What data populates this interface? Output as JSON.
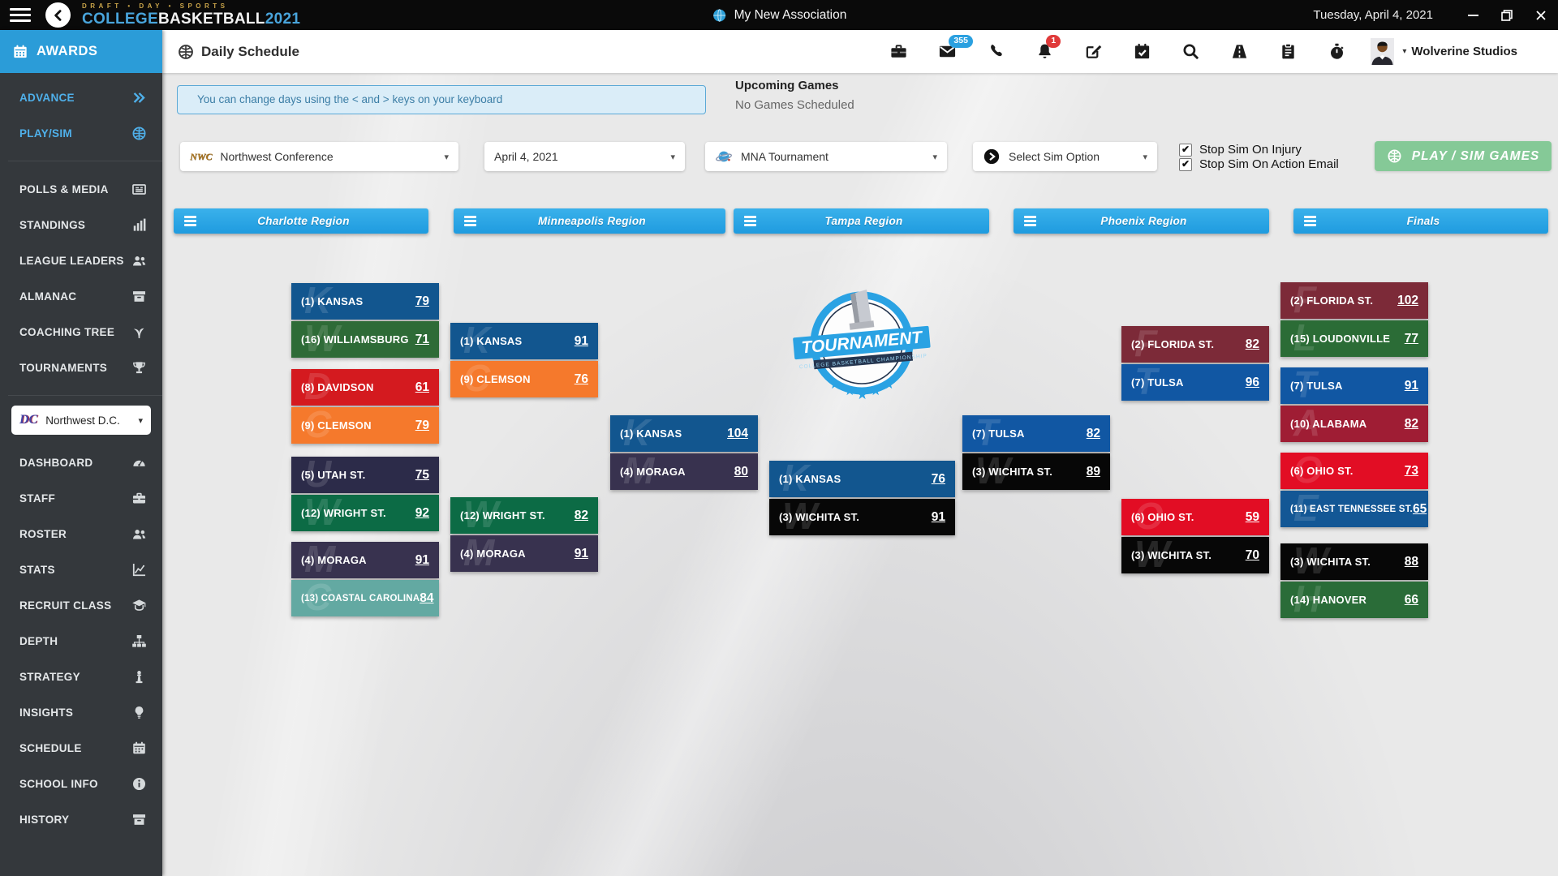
{
  "titlebar": {
    "brand_top": "DRAFT • DAY • SPORTS",
    "brand": {
      "college": "COLLEGE",
      "basketball": "BASKETBALL",
      "year": "2021"
    },
    "app_title": "My New Association",
    "date": "Tuesday, April 4, 2021"
  },
  "header": {
    "page_title": "Daily Schedule",
    "badges": {
      "mail": "355",
      "notifications": "1"
    },
    "user": "Wolverine Studios"
  },
  "sidebar": {
    "header": "AWARDS",
    "primary": [
      {
        "id": "advance",
        "label": "ADVANCE",
        "icon": "double-chevron-right",
        "accent": true
      },
      {
        "id": "play-sim",
        "label": "PLAY/SIM",
        "icon": "basketball",
        "accent": true
      }
    ],
    "league": [
      {
        "id": "polls-media",
        "label": "POLLS & MEDIA",
        "icon": "newspaper"
      },
      {
        "id": "standings",
        "label": "STANDINGS",
        "icon": "bar-chart"
      },
      {
        "id": "league-leaders",
        "label": "LEAGUE LEADERS",
        "icon": "users"
      },
      {
        "id": "almanac",
        "label": "ALMANAC",
        "icon": "archive"
      },
      {
        "id": "coaching-tree",
        "label": "COACHING TREE",
        "icon": "tree"
      },
      {
        "id": "tournaments",
        "label": "TOURNAMENTS",
        "icon": "trophy"
      }
    ],
    "team_selector": {
      "abbr": "DC",
      "label": "Northwest D.C."
    },
    "team": [
      {
        "id": "dashboard",
        "label": "DASHBOARD",
        "icon": "gauge"
      },
      {
        "id": "staff",
        "label": "STAFF",
        "icon": "briefcase"
      },
      {
        "id": "roster",
        "label": "ROSTER",
        "icon": "users"
      },
      {
        "id": "stats",
        "label": "STATS",
        "icon": "chart-line"
      },
      {
        "id": "recruit-class",
        "label": "RECRUIT CLASS",
        "icon": "graduate"
      },
      {
        "id": "depth",
        "label": "DEPTH",
        "icon": "sitemap"
      },
      {
        "id": "strategy",
        "label": "STRATEGY",
        "icon": "chess"
      },
      {
        "id": "insights",
        "label": "INSIGHTS",
        "icon": "lightbulb"
      },
      {
        "id": "schedule",
        "label": "SCHEDULE",
        "icon": "calendar"
      },
      {
        "id": "school-info",
        "label": "SCHOOL INFO",
        "icon": "info-circle"
      },
      {
        "id": "history",
        "label": "HISTORY",
        "icon": "archive-box"
      }
    ]
  },
  "main": {
    "tip": "You can change days using the < and > keys on your keyboard",
    "upcoming": {
      "title": "Upcoming Games",
      "status": "No Games Scheduled"
    },
    "filters": [
      {
        "id": "conference",
        "logo": "nwc",
        "label": "Northwest Conference"
      },
      {
        "id": "date",
        "logo": "",
        "label": "April 4, 2021"
      },
      {
        "id": "tournament",
        "logo": "globe",
        "label": "MNA Tournament"
      },
      {
        "id": "sim-option",
        "logo": "play",
        "label": "Select Sim Option"
      }
    ],
    "checkboxes": [
      {
        "id": "stop-sim-injury",
        "label": "Stop Sim On Injury",
        "checked": true
      },
      {
        "id": "stop-sim-action-email",
        "label": "Stop Sim On Action Email",
        "checked": true
      }
    ],
    "play_button": "PLAY / SIM GAMES"
  },
  "bracket": {
    "regions": [
      "Charlotte Region",
      "Minneapolis Region",
      "Tampa Region",
      "Phoenix Region",
      "Finals"
    ],
    "columns": [
      {
        "games": [
          {
            "teams": [
              {
                "seed": 1,
                "name": "KANSAS",
                "score": 79,
                "color": "#12568f"
              },
              {
                "seed": 16,
                "name": "WILLIAMSBURG",
                "score": 71,
                "color": "#2e6b37"
              }
            ]
          },
          {
            "teams": [
              {
                "seed": 8,
                "name": "DAVIDSON",
                "score": 61,
                "color": "#d41a1f"
              },
              {
                "seed": 9,
                "name": "CLEMSON",
                "score": 79,
                "color": "#f5792c"
              }
            ]
          },
          {
            "teams": [
              {
                "seed": 5,
                "name": "UTAH ST.",
                "score": 75,
                "color": "#2c2b49"
              },
              {
                "seed": 12,
                "name": "WRIGHT ST.",
                "score": 92,
                "color": "#0c6b45"
              }
            ]
          },
          {
            "teams": [
              {
                "seed": 4,
                "name": "MORAGA",
                "score": 91,
                "color": "#38324f"
              },
              {
                "seed": 13,
                "name": "COASTAL CAROLINA",
                "score": 84,
                "color": "#63a9a2"
              }
            ]
          }
        ]
      },
      {
        "games": [
          {
            "teams": [
              {
                "seed": 1,
                "name": "KANSAS",
                "score": 91,
                "color": "#12568f"
              },
              {
                "seed": 9,
                "name": "CLEMSON",
                "score": 76,
                "color": "#f5792c"
              }
            ]
          },
          {
            "teams": [
              {
                "seed": 12,
                "name": "WRIGHT ST.",
                "score": 82,
                "color": "#0c6b45"
              },
              {
                "seed": 4,
                "name": "MORAGA",
                "score": 91,
                "color": "#38324f"
              }
            ]
          }
        ]
      },
      {
        "games": [
          {
            "teams": [
              {
                "seed": 1,
                "name": "KANSAS",
                "score": 104,
                "color": "#12568f"
              },
              {
                "seed": 4,
                "name": "MORAGA",
                "score": 80,
                "color": "#38324f"
              }
            ]
          }
        ]
      },
      {
        "games": [
          {
            "teams": [
              {
                "seed": 1,
                "name": "KANSAS",
                "score": 76,
                "color": "#12568f"
              },
              {
                "seed": 3,
                "name": "WICHITA ST.",
                "score": 91,
                "color": "#070707"
              }
            ]
          }
        ]
      },
      {
        "games": [
          {
            "teams": [
              {
                "seed": 7,
                "name": "TULSA",
                "score": 82,
                "color": "#1157a3"
              },
              {
                "seed": 3,
                "name": "WICHITA ST.",
                "score": 89,
                "color": "#070707"
              }
            ]
          }
        ]
      },
      {
        "games": [
          {
            "teams": [
              {
                "seed": 2,
                "name": "FLORIDA ST.",
                "score": 82,
                "color": "#7c2a38"
              },
              {
                "seed": 7,
                "name": "TULSA",
                "score": 96,
                "color": "#1157a3"
              }
            ]
          },
          {
            "teams": [
              {
                "seed": 6,
                "name": "OHIO ST.",
                "score": 59,
                "color": "#e20d24"
              },
              {
                "seed": 3,
                "name": "WICHITA ST.",
                "score": 70,
                "color": "#070707"
              }
            ]
          }
        ]
      },
      {
        "games": [
          {
            "teams": [
              {
                "seed": 2,
                "name": "FLORIDA ST.",
                "score": 102,
                "color": "#7c2a38"
              },
              {
                "seed": 15,
                "name": "LOUDONVILLE",
                "score": 77,
                "color": "#2b6c36"
              }
            ]
          },
          {
            "teams": [
              {
                "seed": 7,
                "name": "TULSA",
                "score": 91,
                "color": "#1157a3"
              },
              {
                "seed": 10,
                "name": "ALABAMA",
                "score": 82,
                "color": "#9f1d34"
              }
            ]
          },
          {
            "teams": [
              {
                "seed": 6,
                "name": "OHIO ST.",
                "score": 73,
                "color": "#e20d24"
              },
              {
                "seed": 11,
                "name": "EAST TENNESSEE ST.",
                "score": 65,
                "color": "#135795"
              }
            ]
          },
          {
            "teams": [
              {
                "seed": 3,
                "name": "WICHITA ST.",
                "score": 88,
                "color": "#070707"
              },
              {
                "seed": 14,
                "name": "HANOVER",
                "score": 66,
                "color": "#2a6c38"
              }
            ]
          }
        ]
      }
    ]
  },
  "logo": {
    "banner": "TOURNAMENT",
    "sub_banner": "COLLEGE BASKETBALL CHAMPIONSHIP"
  },
  "colors": {
    "accent_blue": "#29a3e3",
    "sidebar_accent": "#4fb0ea",
    "play_button_green": "#85c997",
    "mail_badge": "#2aa0e0",
    "alert_badge": "#e03a3a"
  }
}
